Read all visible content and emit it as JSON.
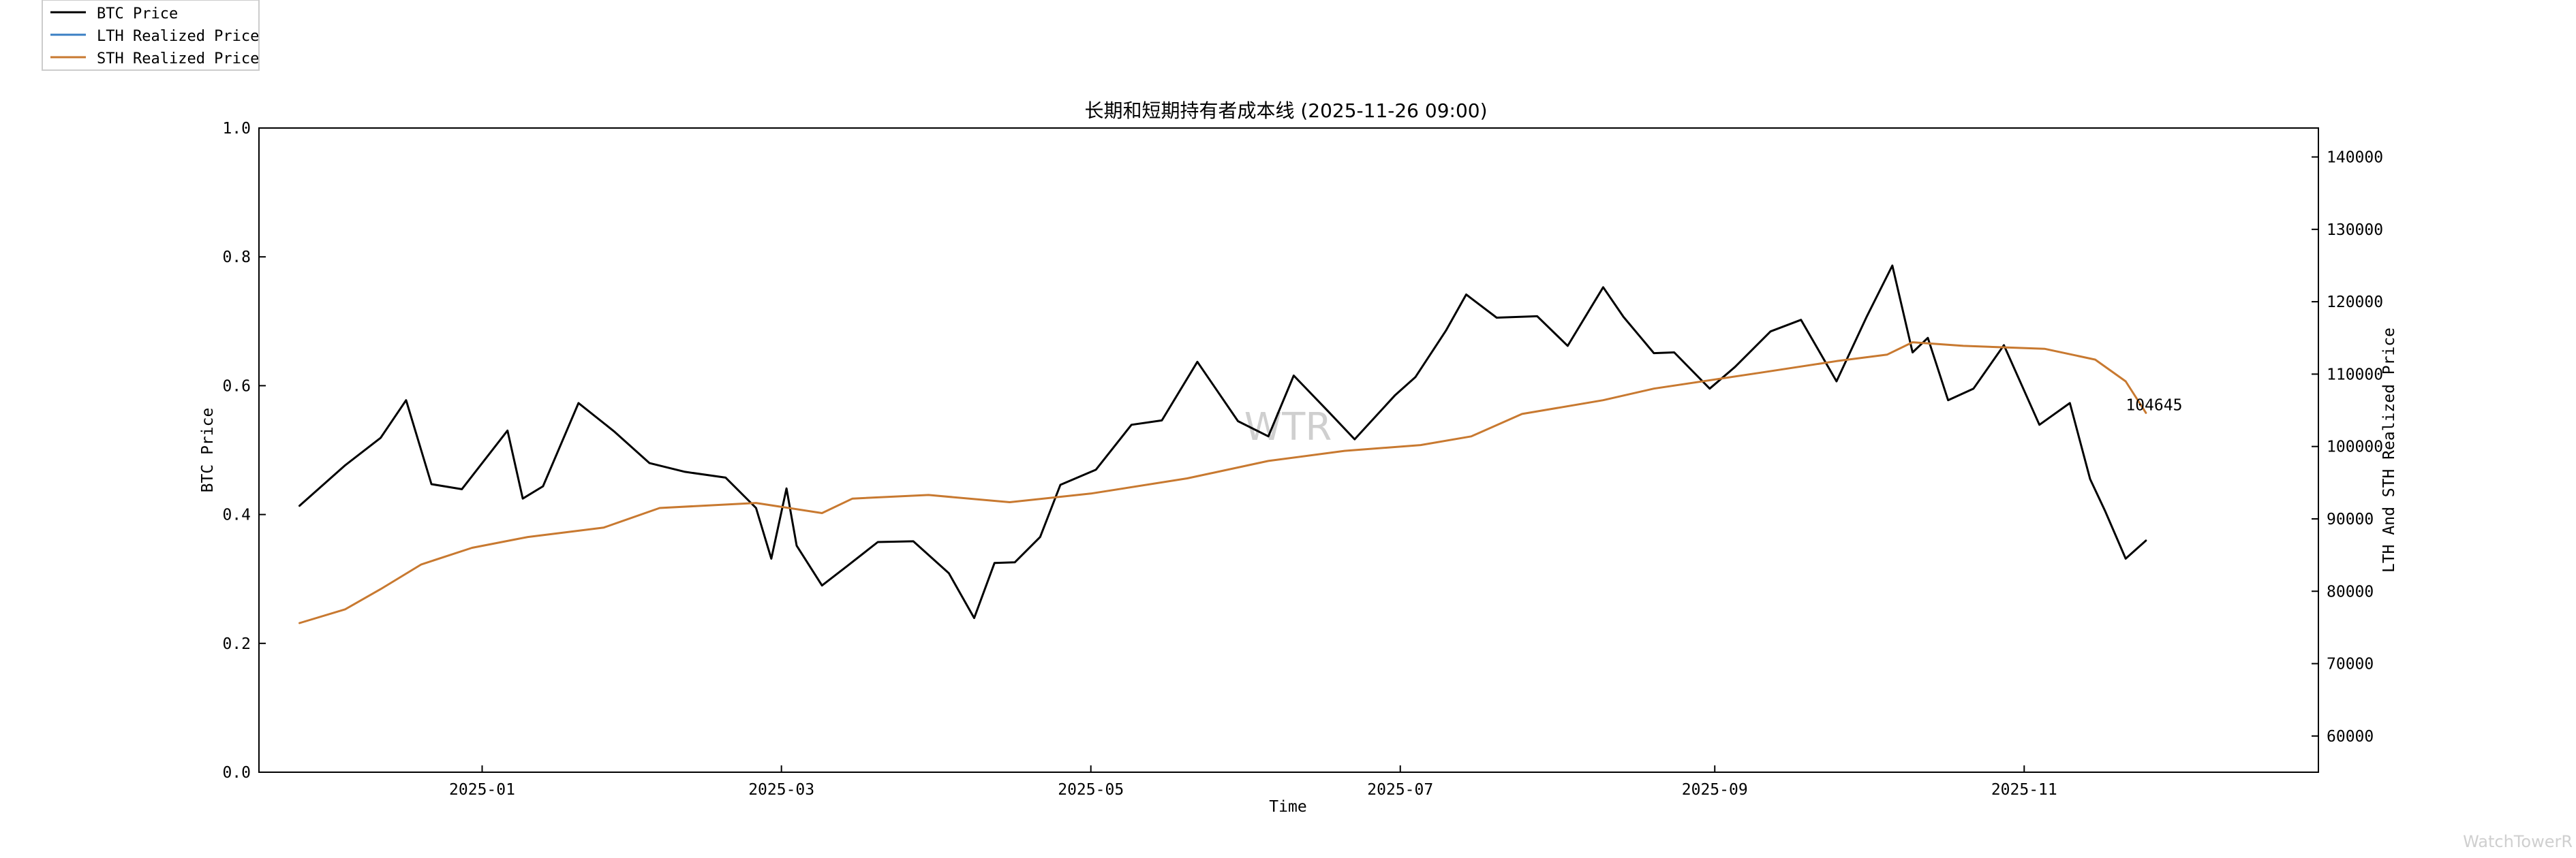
{
  "chart_data": {
    "type": "line",
    "title": "长期和短期持有者成本线 (2025-11-26 09:00)",
    "xlabel": "Time",
    "ylabel_left": "BTC Price",
    "ylabel_right": "LTH And STH Realized Price",
    "x_ticks": [
      "2025-01",
      "2025-03",
      "2025-05",
      "2025-07",
      "2025-09",
      "2025-11"
    ],
    "left_ticks": [
      "0.0",
      "0.2",
      "0.4",
      "0.6",
      "0.8",
      "1.0"
    ],
    "right_ticks": [
      "60000",
      "70000",
      "80000",
      "90000",
      "100000",
      "110000",
      "120000",
      "130000",
      "140000"
    ],
    "left_ylim": [
      0,
      1
    ],
    "right_ylim": [
      55000,
      144000
    ],
    "x_range": [
      "2024-11-18",
      "2025-12-29"
    ],
    "legend_position": "top-left (outside plot)",
    "annotation": "104645",
    "watermark_center": "WTR",
    "watermark_corner": "WatchTowerR",
    "grid": false,
    "series": [
      {
        "name": "BTC Price",
        "color": "#000000",
        "x": [
          "2024-11-26",
          "2024-12-05",
          "2024-12-12",
          "2024-12-17",
          "2024-12-22",
          "2024-12-28",
          "2025-01-06",
          "2025-01-09",
          "2025-01-13",
          "2025-01-20",
          "2025-01-27",
          "2025-02-03",
          "2025-02-10",
          "2025-02-18",
          "2025-02-24",
          "2025-02-27",
          "2025-03-02",
          "2025-03-04",
          "2025-03-09",
          "2025-03-14",
          "2025-03-20",
          "2025-03-27",
          "2025-04-03",
          "2025-04-08",
          "2025-04-12",
          "2025-04-16",
          "2025-04-21",
          "2025-04-25",
          "2025-05-02",
          "2025-05-09",
          "2025-05-15",
          "2025-05-22",
          "2025-05-30",
          "2025-06-05",
          "2025-06-10",
          "2025-06-17",
          "2025-06-22",
          "2025-06-30",
          "2025-07-04",
          "2025-07-10",
          "2025-07-14",
          "2025-07-20",
          "2025-07-28",
          "2025-08-03",
          "2025-08-10",
          "2025-08-14",
          "2025-08-20",
          "2025-08-24",
          "2025-08-31",
          "2025-09-05",
          "2025-09-12",
          "2025-09-18",
          "2025-09-25",
          "2025-10-01",
          "2025-10-06",
          "2025-10-10",
          "2025-10-13",
          "2025-10-17",
          "2025-10-22",
          "2025-10-28",
          "2025-11-04",
          "2025-11-10",
          "2025-11-14",
          "2025-11-17",
          "2025-11-21",
          "2025-11-25"
        ],
        "values": [
          91800,
          97400,
          101200,
          106400,
          94800,
          94100,
          102200,
          92800,
          94500,
          106000,
          102100,
          97700,
          96500,
          95700,
          91500,
          84500,
          94200,
          86300,
          80800,
          83500,
          86800,
          86900,
          82500,
          76300,
          83900,
          84000,
          87500,
          94700,
          96800,
          103000,
          103600,
          111700,
          103500,
          101400,
          109800,
          104700,
          101000,
          107100,
          109600,
          116000,
          121000,
          117800,
          118000,
          113900,
          122000,
          117900,
          112900,
          113000,
          108000,
          111000,
          115900,
          117500,
          109000,
          118000,
          125000,
          113000,
          115000,
          106400,
          108000,
          114000,
          103000,
          106000,
          95500,
          91000,
          84500,
          87000
        ]
      },
      {
        "name": "LTH Realized Price",
        "color": "#3a7fc4",
        "x": [],
        "values": []
      },
      {
        "name": "STH Realized Price",
        "color": "#c87930",
        "x": [
          "2024-11-26",
          "2024-12-05",
          "2024-12-12",
          "2024-12-20",
          "2024-12-30",
          "2025-01-10",
          "2025-01-25",
          "2025-02-05",
          "2025-02-24",
          "2025-03-09",
          "2025-03-15",
          "2025-03-30",
          "2025-04-15",
          "2025-05-01",
          "2025-05-20",
          "2025-06-05",
          "2025-06-20",
          "2025-07-05",
          "2025-07-15",
          "2025-07-25",
          "2025-08-10",
          "2025-08-20",
          "2025-09-10",
          "2025-09-25",
          "2025-10-05",
          "2025-10-10",
          "2025-10-20",
          "2025-11-05",
          "2025-11-15",
          "2025-11-21",
          "2025-11-25"
        ],
        "values": [
          75600,
          77500,
          80300,
          83700,
          86000,
          87500,
          88800,
          91500,
          92200,
          90800,
          92800,
          93300,
          92300,
          93500,
          95600,
          98000,
          99400,
          100200,
          101400,
          104500,
          106400,
          108000,
          110200,
          111800,
          112700,
          114400,
          113900,
          113500,
          112000,
          109000,
          104645
        ]
      }
    ]
  }
}
